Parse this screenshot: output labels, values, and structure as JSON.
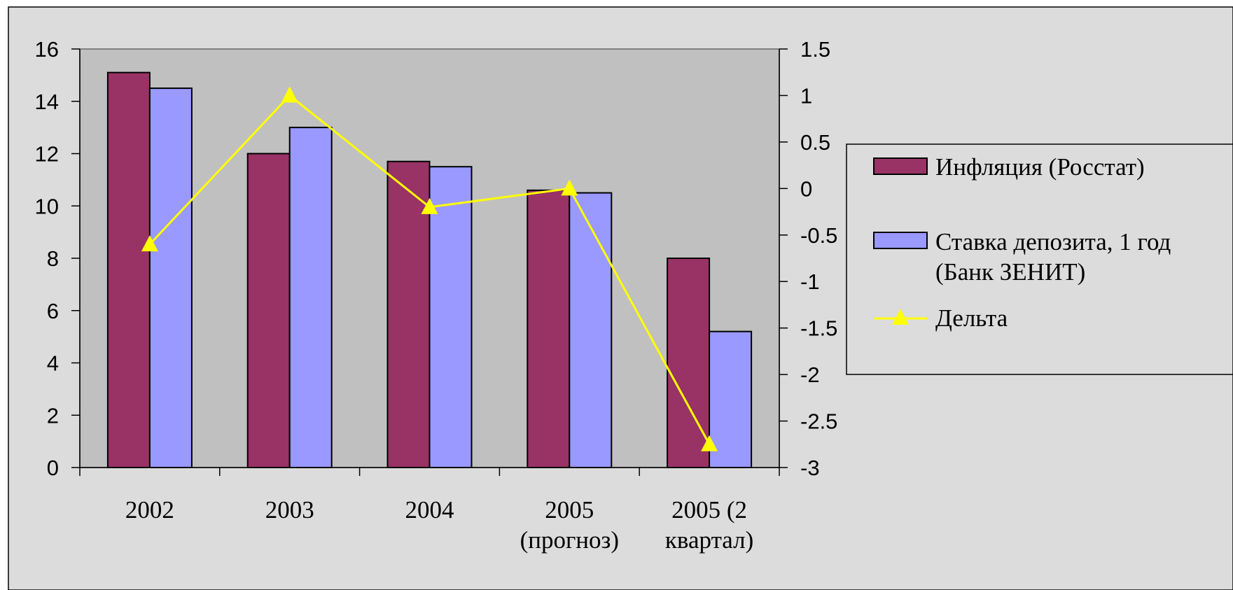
{
  "chart_data": {
    "type": "bar",
    "categories": [
      "2002",
      "2003",
      "2004",
      "2005\n(прогноз)",
      "2005 (2\nквартал)"
    ],
    "series": [
      {
        "name": "Инфляция (Росстат)",
        "type": "bar",
        "axis": "left",
        "values": [
          15.1,
          12.0,
          11.7,
          10.6,
          8.0
        ]
      },
      {
        "name": "Ставка депозита, 1 год (Банк ЗЕНИТ)",
        "type": "bar",
        "axis": "left",
        "values": [
          14.5,
          13.0,
          11.5,
          10.5,
          5.2
        ]
      },
      {
        "name": "Дельта",
        "type": "line",
        "axis": "right",
        "marker": "triangle",
        "values": [
          -0.6,
          1.0,
          -0.2,
          0.0,
          -2.75
        ]
      }
    ],
    "y_left": {
      "min": 0,
      "max": 16,
      "step": 2,
      "ticks": [
        "0",
        "2",
        "4",
        "6",
        "8",
        "10",
        "12",
        "14",
        "16"
      ]
    },
    "y_right": {
      "min": -3,
      "max": 1.5,
      "step": 0.5,
      "ticks": [
        "-3",
        "-2.5",
        "-2",
        "-1.5",
        "-1",
        "-0.5",
        "0",
        "0.5",
        "1",
        "1.5"
      ]
    },
    "grid": false,
    "legend_position": "right",
    "colors": {
      "figure_bg": "#dcdcdc",
      "plot_bg": "#c0c0c0",
      "inflation": "#993366",
      "deposit": "#9999ff",
      "delta": "#ffff00"
    }
  },
  "legend": {
    "items": [
      {
        "lines": [
          "Инфляция (Росстат)"
        ]
      },
      {
        "lines": [
          "Ставка депозита, 1 год",
          "(Банк ЗЕНИТ)"
        ]
      },
      {
        "lines": [
          "Дельта"
        ]
      }
    ]
  }
}
